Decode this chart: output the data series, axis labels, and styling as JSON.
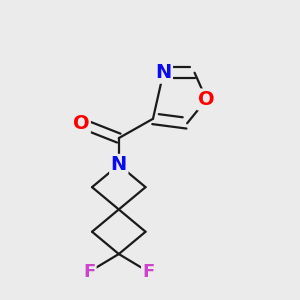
{
  "background_color": "#ebebeb",
  "bond_color": "#1a1a1a",
  "atom_colors": {
    "O": "#ff0000",
    "N": "#0a0aee",
    "F": "#cc44cc",
    "C": "#1a1a1a"
  },
  "lw": 1.6,
  "dbo": 0.018,
  "fs": 14
}
